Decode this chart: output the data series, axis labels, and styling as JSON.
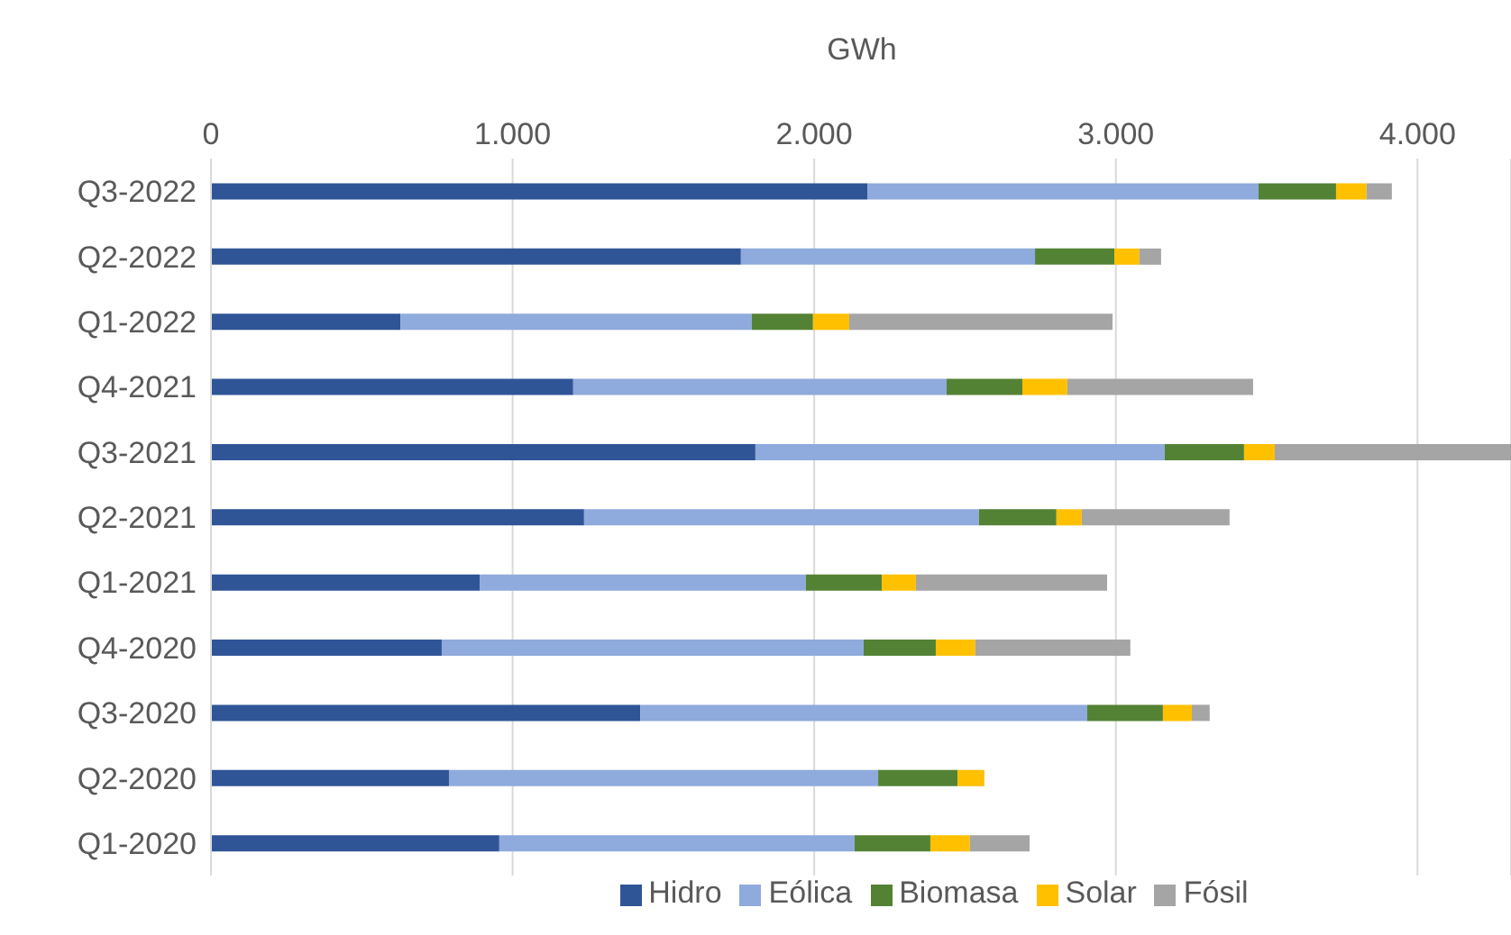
{
  "chart_data": {
    "type": "bar",
    "orientation": "horizontal",
    "stacked": true,
    "xlabel": "GWh",
    "categories": [
      "Q3-2022",
      "Q2-2022",
      "Q1-2022",
      "Q4-2021",
      "Q3-2021",
      "Q2-2021",
      "Q1-2021",
      "Q4-2020",
      "Q3-2020",
      "Q2-2020",
      "Q1-2020"
    ],
    "series": [
      {
        "name": "Hidro",
        "color": "#2f5597",
        "values": [
          2176,
          1757,
          628,
          1201,
          1805,
          1237,
          891,
          765,
          1423,
          789,
          956
        ]
      },
      {
        "name": "Eólica",
        "color": "#8faadc",
        "values": [
          1297,
          975,
          1165,
          1238,
          1357,
          1309,
          1081,
          1399,
          1482,
          1423,
          1178
        ]
      },
      {
        "name": "Biomasa",
        "color": "#548235",
        "values": [
          257,
          263,
          203,
          251,
          263,
          257,
          252,
          239,
          251,
          263,
          251
        ]
      },
      {
        "name": "Solar",
        "color": "#ffc000",
        "values": [
          101,
          83,
          120,
          149,
          102,
          84,
          113,
          131,
          96,
          89,
          131
        ]
      },
      {
        "name": "Fósil",
        "color": "#a5a5a5",
        "values": [
          84,
          72,
          873,
          616,
          783,
          490,
          634,
          514,
          59,
          null,
          198
        ]
      }
    ],
    "xlim": [
      0,
      4310
    ],
    "xticks": [
      0,
      {
        "value": 1000,
        "label": "1.000"
      },
      {
        "value": 2000,
        "label": "2.000"
      },
      {
        "value": 3000,
        "label": "3.000"
      },
      {
        "value": 4000,
        "label": "4.000"
      }
    ],
    "grid": "x",
    "legend": "bottom"
  }
}
